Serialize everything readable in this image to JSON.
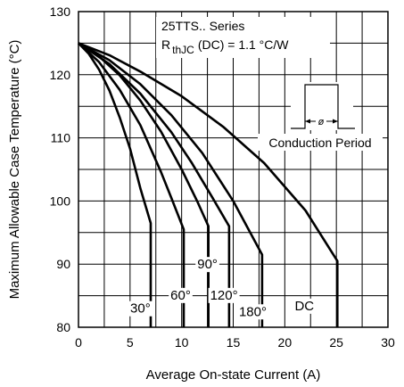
{
  "chart_data": {
    "type": "line",
    "title": "",
    "xlabel": "Average On-state Current (A)",
    "ylabel": "Maximum Allowable Case Temperature (°C)",
    "xlim": [
      0,
      30
    ],
    "ylim": [
      80,
      130
    ],
    "x_ticks": [
      0,
      5,
      10,
      15,
      20,
      25,
      30
    ],
    "y_ticks": [
      80,
      90,
      100,
      110,
      120,
      130
    ],
    "x_tick_labels": [
      "0",
      "5",
      "10",
      "15",
      "20",
      "25",
      "30"
    ],
    "y_tick_labels": [
      "80",
      "90",
      "100",
      "110",
      "120",
      "130"
    ],
    "grid": true,
    "annotations": {
      "series_name": "25TTS.. Series",
      "rthjc_prefix": "R",
      "rthjc_subscript": "thJC",
      "rthjc_value": "(DC) = 1.1 °C/W",
      "inset_label": "Conduction Period",
      "inset_symbol": "ø"
    },
    "series": [
      {
        "name": "30°",
        "label": "30°",
        "points": [
          [
            0,
            125
          ],
          [
            1,
            123.3
          ],
          [
            2,
            120.8
          ],
          [
            3,
            117.5
          ],
          [
            4,
            113.2
          ],
          [
            5,
            108.3
          ],
          [
            6,
            102
          ],
          [
            7,
            96.5
          ],
          [
            7,
            80
          ]
        ]
      },
      {
        "name": "60°",
        "label": "60°",
        "points": [
          [
            0,
            125
          ],
          [
            2,
            122
          ],
          [
            4,
            117.6
          ],
          [
            6,
            112
          ],
          [
            8,
            104.6
          ],
          [
            9,
            100.5
          ],
          [
            10.2,
            95.5
          ],
          [
            10.2,
            80
          ]
        ]
      },
      {
        "name": "90°",
        "label": "90°",
        "points": [
          [
            0,
            125
          ],
          [
            2,
            122.9
          ],
          [
            4,
            119.9
          ],
          [
            6,
            115.9
          ],
          [
            8,
            111
          ],
          [
            10,
            105
          ],
          [
            11.5,
            100
          ],
          [
            12.6,
            96
          ],
          [
            12.6,
            80
          ]
        ]
      },
      {
        "name": "120°",
        "label": "120°",
        "points": [
          [
            0,
            125
          ],
          [
            3,
            121.7
          ],
          [
            6,
            117
          ],
          [
            9,
            110.9
          ],
          [
            11,
            106
          ],
          [
            13,
            100.5
          ],
          [
            14.6,
            96
          ],
          [
            14.6,
            80
          ]
        ]
      },
      {
        "name": "180°",
        "label": "180°",
        "points": [
          [
            0,
            125
          ],
          [
            3,
            122.3
          ],
          [
            6,
            118.5
          ],
          [
            9,
            113.6
          ],
          [
            12,
            107.6
          ],
          [
            15,
            100
          ],
          [
            17.8,
            91.5
          ],
          [
            17.8,
            80
          ]
        ]
      },
      {
        "name": "DC",
        "label": "DC",
        "points": [
          [
            0,
            125
          ],
          [
            3,
            123.1
          ],
          [
            6,
            120.5
          ],
          [
            10,
            116.6
          ],
          [
            14,
            111.8
          ],
          [
            18,
            106
          ],
          [
            22,
            98.5
          ],
          [
            25.1,
            90.5
          ],
          [
            25.1,
            80
          ]
        ]
      }
    ]
  }
}
